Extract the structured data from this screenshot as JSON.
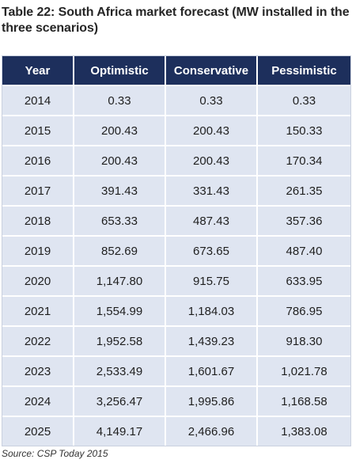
{
  "title": "Table 22: South Africa market forecast (MW installed in the three scenarios)",
  "table": {
    "headers": [
      "Year",
      "Optimistic",
      "Conservative",
      "Pessimistic"
    ],
    "rows": [
      [
        "2014",
        "0.33",
        "0.33",
        "0.33"
      ],
      [
        "2015",
        "200.43",
        "200.43",
        "150.33"
      ],
      [
        "2016",
        "200.43",
        "200.43",
        "170.34"
      ],
      [
        "2017",
        "391.43",
        "331.43",
        "261.35"
      ],
      [
        "2018",
        "653.33",
        "487.43",
        "357.36"
      ],
      [
        "2019",
        "852.69",
        "673.65",
        "487.40"
      ],
      [
        "2020",
        "1,147.80",
        "915.75",
        "633.95"
      ],
      [
        "2021",
        "1,554.99",
        "1,184.03",
        "786.95"
      ],
      [
        "2022",
        "1,952.58",
        "1,439.23",
        "918.30"
      ],
      [
        "2023",
        "2,533.49",
        "1,601.67",
        "1,021.78"
      ],
      [
        "2024",
        "3,256.47",
        "1,995.86",
        "1,168.58"
      ],
      [
        "2025",
        "4,149.17",
        "2,466.96",
        "1,383.08"
      ]
    ]
  },
  "source": "Source: CSP Today 2015",
  "colors": {
    "header_bg": "#1d2f5c",
    "header_text": "#ffffff",
    "row_bg": "#dfe5f1"
  }
}
